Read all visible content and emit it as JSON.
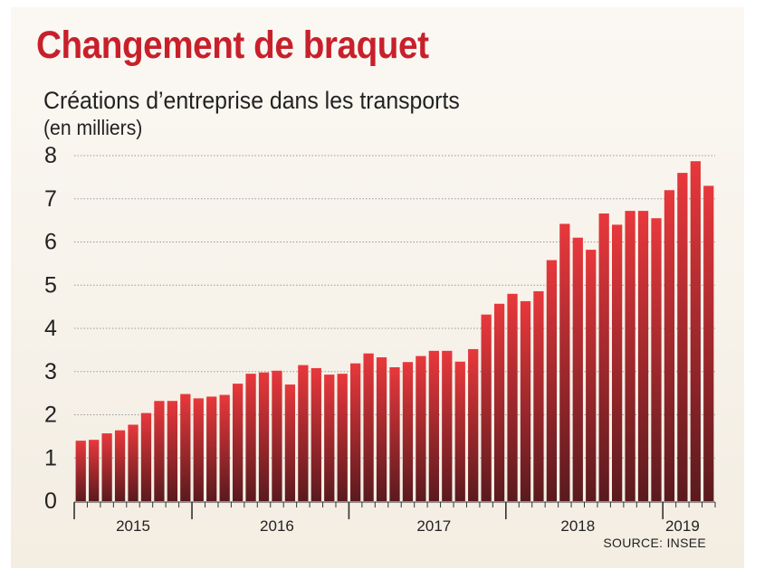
{
  "header": {
    "title": "Changement de braquet",
    "subtitle": "Créations d’entreprise dans les transports",
    "unit": "(en milliers)"
  },
  "footer": {
    "source": "SOURCE: INSEE"
  },
  "colors": {
    "title": "#c8202b",
    "bar_top": "#e8383c",
    "bar_bottom": "#5a1a1e",
    "grid": "#9a9a9a"
  },
  "chart_data": {
    "type": "bar",
    "title": "Changement de braquet",
    "subtitle": "Créations d’entreprise dans les transports",
    "ylabel": "(en milliers)",
    "xlabel": "",
    "ylim": [
      0,
      8
    ],
    "yticks": [
      "0",
      "1",
      "2",
      "3",
      "4",
      "5",
      "6",
      "7",
      "8"
    ],
    "grid": true,
    "legend": "none",
    "year_labels": [
      "2015",
      "2016",
      "2017",
      "2018",
      "2019"
    ],
    "year_label_positions": [
      4.5,
      15.5,
      27.5,
      38.5,
      46.5
    ],
    "year_separators": [
      0,
      9,
      21,
      33,
      45
    ],
    "values": [
      1.4,
      1.42,
      1.57,
      1.64,
      1.77,
      2.04,
      2.32,
      2.32,
      2.48,
      2.38,
      2.42,
      2.46,
      2.72,
      2.95,
      2.98,
      3.02,
      2.7,
      3.15,
      3.08,
      2.93,
      2.95,
      3.19,
      3.42,
      3.33,
      3.1,
      3.22,
      3.36,
      3.48,
      3.48,
      3.23,
      3.52,
      4.32,
      4.57,
      4.8,
      4.63,
      4.86,
      5.58,
      6.42,
      6.1,
      5.82,
      6.66,
      6.4,
      6.72,
      6.72,
      6.55,
      7.2,
      7.6,
      7.87,
      7.3
    ]
  }
}
